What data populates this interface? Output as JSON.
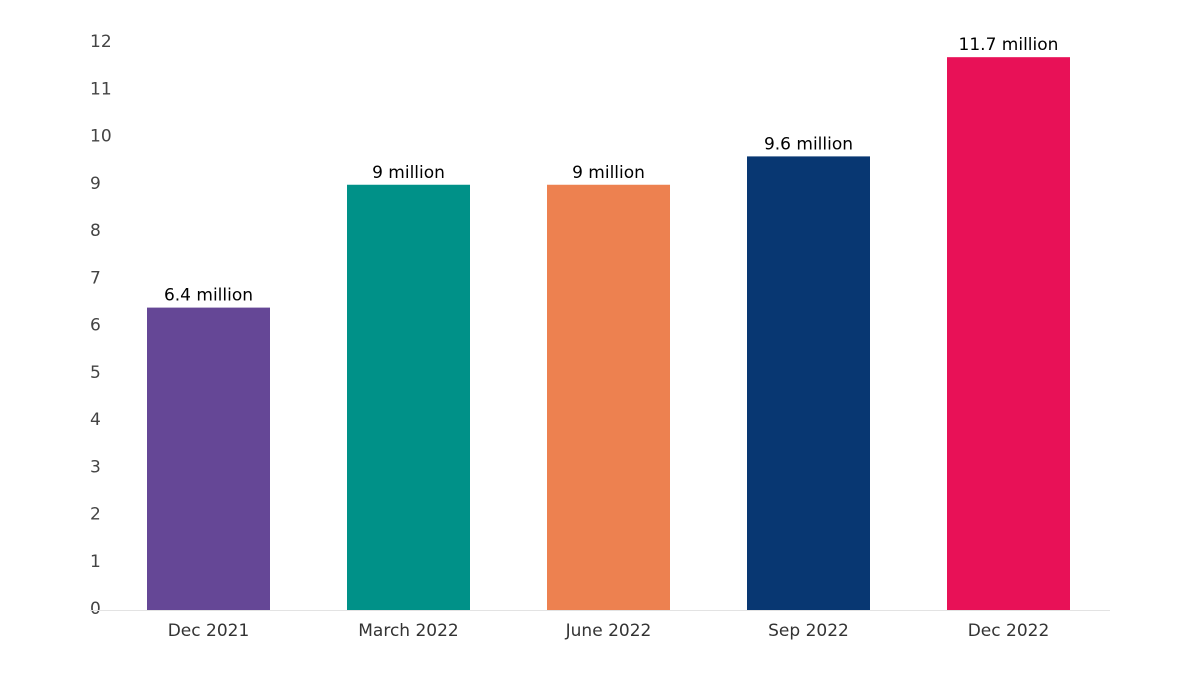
{
  "chart_data": {
    "type": "bar",
    "title": "",
    "xlabel": "",
    "ylabel": "",
    "ylim": [
      0,
      12
    ],
    "yticks": [
      0,
      1,
      2,
      3,
      4,
      5,
      6,
      7,
      8,
      9,
      10,
      11,
      12
    ],
    "yticks_labels": [
      "0",
      "1",
      "2",
      "3",
      "4",
      "5",
      "6",
      "7",
      "8",
      "9",
      "10",
      "11",
      "12"
    ],
    "grid": false,
    "categories": [
      "Dec 2021",
      "March 2022",
      "June 2022",
      "Sep 2022",
      "Dec 2022"
    ],
    "values": [
      6.4,
      9,
      9,
      9.6,
      11.7
    ],
    "data_labels": [
      "6.4 million",
      "9 million",
      "9 million",
      "9.6 million",
      "11.7 million"
    ],
    "colors": [
      "#654796",
      "#009188",
      "#ED8150",
      "#083772",
      "#E81157"
    ]
  }
}
